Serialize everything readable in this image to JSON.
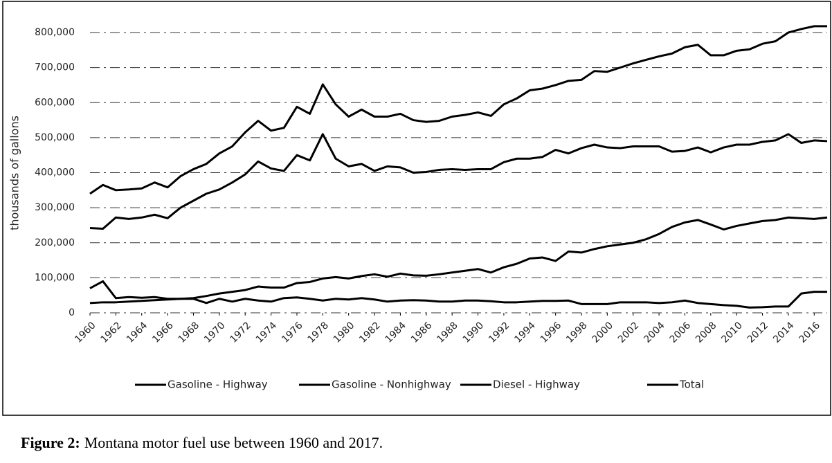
{
  "chart_data": {
    "type": "line",
    "ylabel": "thousands of gallons",
    "x": [
      1960,
      1961,
      1962,
      1963,
      1964,
      1965,
      1966,
      1967,
      1968,
      1969,
      1970,
      1971,
      1972,
      1973,
      1974,
      1975,
      1976,
      1977,
      1978,
      1979,
      1980,
      1981,
      1982,
      1983,
      1984,
      1985,
      1986,
      1987,
      1988,
      1989,
      1990,
      1991,
      1992,
      1993,
      1994,
      1995,
      1996,
      1997,
      1998,
      1999,
      2000,
      2001,
      2002,
      2003,
      2004,
      2005,
      2006,
      2007,
      2008,
      2009,
      2010,
      2011,
      2012,
      2013,
      2014,
      2015,
      2016,
      2017
    ],
    "xlim": [
      1960,
      2017
    ],
    "xticks": [
      1960,
      1962,
      1964,
      1966,
      1968,
      1970,
      1972,
      1974,
      1976,
      1978,
      1980,
      1982,
      1984,
      1986,
      1988,
      1990,
      1992,
      1994,
      1996,
      1998,
      2000,
      2002,
      2004,
      2006,
      2008,
      2010,
      2012,
      2014,
      2016
    ],
    "ylim": [
      0,
      800000
    ],
    "yticks": [
      0,
      {
        "value": 100000,
        "label": "100,000"
      },
      {
        "value": 200000,
        "label": "200,000"
      },
      {
        "value": 300000,
        "label": "300,000"
      },
      {
        "value": 400000,
        "label": "400,000"
      },
      {
        "value": 500000,
        "label": "500,000"
      },
      {
        "value": 600000,
        "label": "600,000"
      },
      {
        "value": 700000,
        "label": "700,000"
      },
      {
        "value": 800000,
        "label": "800,000"
      }
    ],
    "grid": true,
    "legend": "bottom",
    "series": [
      {
        "name": "Gasoline - Highway",
        "color": "#000000",
        "values": [
          242000,
          240000,
          272000,
          268000,
          272000,
          280000,
          270000,
          300000,
          320000,
          340000,
          352000,
          372000,
          395000,
          432000,
          412000,
          405000,
          450000,
          435000,
          510000,
          440000,
          418000,
          425000,
          405000,
          418000,
          415000,
          400000,
          402000,
          408000,
          410000,
          408000,
          410000,
          410000,
          430000,
          440000,
          440000,
          445000,
          465000,
          455000,
          470000,
          480000,
          472000,
          470000,
          475000,
          475000,
          475000,
          460000,
          462000,
          472000,
          458000,
          472000,
          480000,
          480000,
          488000,
          492000,
          510000,
          485000,
          492000,
          490000
        ]
      },
      {
        "name": "Gasoline - Nonhighway",
        "color": "#000000",
        "values": [
          70000,
          90000,
          42000,
          45000,
          43000,
          45000,
          40000,
          40000,
          40000,
          28000,
          40000,
          32000,
          40000,
          35000,
          32000,
          42000,
          44000,
          40000,
          35000,
          40000,
          38000,
          42000,
          38000,
          32000,
          35000,
          36000,
          35000,
          32000,
          32000,
          35000,
          35000,
          33000,
          30000,
          30000,
          32000,
          34000,
          34000,
          35000,
          25000,
          25000,
          25000,
          30000,
          30000,
          30000,
          28000,
          30000,
          35000,
          28000,
          25000,
          22000,
          20000,
          15000,
          16000,
          18000,
          18000,
          55000,
          60000,
          60000
        ]
      },
      {
        "name": "Diesel - Highway",
        "color": "#000000",
        "values": [
          28000,
          30000,
          30000,
          32000,
          34000,
          36000,
          38000,
          40000,
          42000,
          48000,
          55000,
          60000,
          65000,
          75000,
          72000,
          72000,
          85000,
          88000,
          98000,
          102000,
          98000,
          105000,
          110000,
          103000,
          112000,
          107000,
          106000,
          110000,
          115000,
          120000,
          125000,
          115000,
          130000,
          140000,
          155000,
          158000,
          148000,
          175000,
          172000,
          182000,
          190000,
          195000,
          200000,
          210000,
          225000,
          245000,
          258000,
          265000,
          252000,
          238000,
          248000,
          255000,
          262000,
          265000,
          272000,
          270000,
          268000,
          272000
        ]
      },
      {
        "name": "Total",
        "color": "#000000",
        "values": [
          340000,
          365000,
          350000,
          352000,
          355000,
          372000,
          358000,
          390000,
          410000,
          425000,
          455000,
          475000,
          515000,
          548000,
          520000,
          528000,
          588000,
          568000,
          652000,
          595000,
          560000,
          580000,
          560000,
          560000,
          568000,
          550000,
          545000,
          548000,
          560000,
          565000,
          572000,
          562000,
          595000,
          612000,
          635000,
          640000,
          650000,
          662000,
          665000,
          690000,
          688000,
          700000,
          712000,
          722000,
          732000,
          740000,
          758000,
          765000,
          735000,
          735000,
          748000,
          752000,
          768000,
          775000,
          800000,
          810000,
          818000,
          818000
        ]
      }
    ],
    "caption_label": "Figure 2:",
    "caption": "Montana motor fuel use between 1960 and 2017."
  }
}
